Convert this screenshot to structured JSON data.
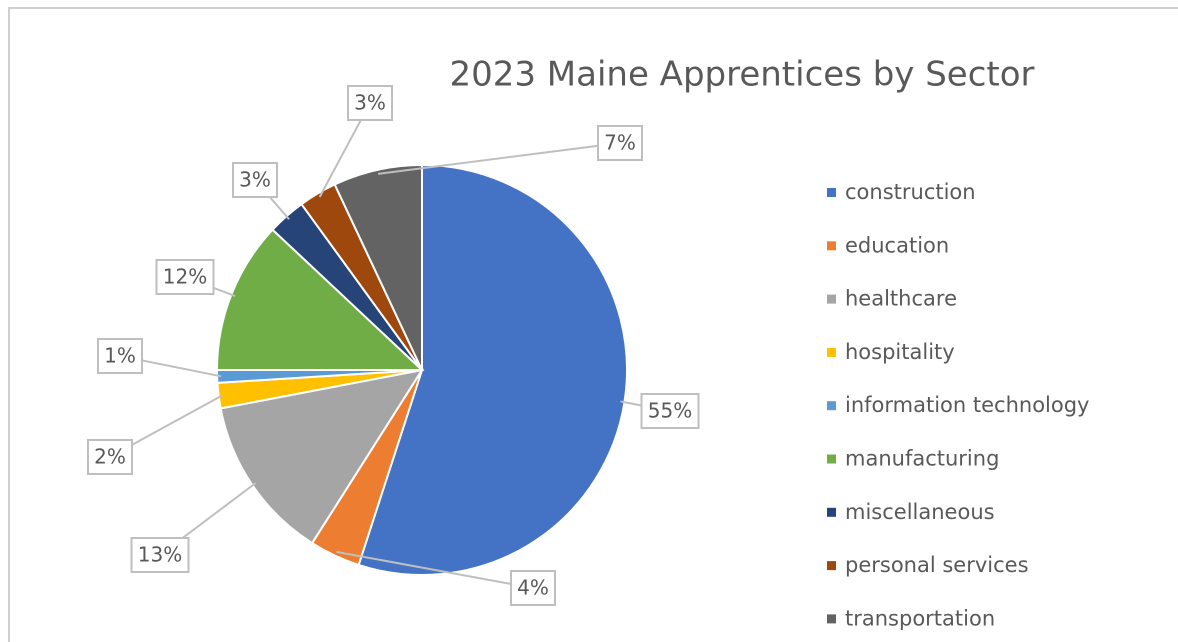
{
  "chart_data": {
    "type": "pie",
    "title": "2023 Maine Apprentices by Sector",
    "categories": [
      "construction",
      "education",
      "healthcare",
      "hospitality",
      "information technology",
      "manufacturing",
      "miscellaneous",
      "personal services",
      "transportation"
    ],
    "values": [
      55,
      4,
      13,
      2,
      1,
      12,
      3,
      3,
      7
    ],
    "value_labels": [
      "55%",
      "4%",
      "13%",
      "2%",
      "1%",
      "12%",
      "3%",
      "3%",
      "7%"
    ],
    "colors": [
      "#4472c4",
      "#ed7d31",
      "#a5a5a5",
      "#ffc000",
      "#5b9bd5",
      "#70ad47",
      "#264478",
      "#9e480e",
      "#636363"
    ],
    "legend": "right"
  }
}
